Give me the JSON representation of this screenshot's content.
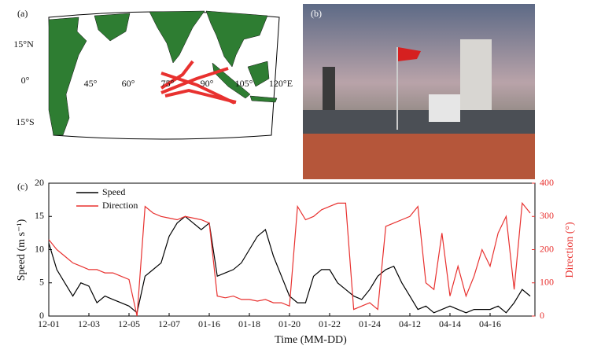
{
  "map": {
    "panel": "(a)",
    "lat_labels": [
      "15°N",
      "0°",
      "15°S"
    ],
    "lon_labels": [
      "45°",
      "60°",
      "75°",
      "90°",
      "105°",
      "120°E"
    ]
  },
  "photo": {
    "panel": "(b)"
  },
  "chart_data": {
    "type": "line",
    "panel": "(c)",
    "xlabel": "Time (MM-DD)",
    "ylabel": "Speed (m s⁻¹)",
    "y2label": "Direction (°)",
    "categories": [
      "12-01",
      null,
      null,
      null,
      null,
      "12-03",
      null,
      null,
      null,
      null,
      "12-05",
      null,
      null,
      null,
      null,
      "12-07",
      null,
      null,
      null,
      null,
      "01-16",
      null,
      null,
      null,
      null,
      "01-18",
      null,
      null,
      null,
      null,
      "01-20",
      null,
      null,
      null,
      null,
      "01-22",
      null,
      null,
      null,
      null,
      "01-24",
      null,
      null,
      null,
      null,
      "04-12",
      null,
      null,
      null,
      null,
      "04-14",
      null,
      null,
      null,
      null,
      "04-16",
      null,
      null,
      null,
      null,
      null
    ],
    "series": [
      {
        "name": "Speed",
        "color": "#000000",
        "values": [
          11,
          7,
          5,
          3,
          5,
          4.5,
          2,
          3,
          2.5,
          2,
          1.5,
          0.5,
          6,
          7,
          8,
          12,
          14,
          15,
          14,
          13,
          14,
          6,
          6.5,
          7,
          8,
          10,
          12,
          13,
          9,
          6,
          3,
          2,
          2,
          6,
          7,
          7,
          5,
          4,
          3,
          2.5,
          4,
          6,
          7,
          7.5,
          5,
          3,
          1,
          1.5,
          0.5,
          1,
          1.5,
          1,
          0.5,
          1,
          1,
          1,
          1.5,
          0.5,
          2,
          4,
          3
        ]
      },
      {
        "name": "Direction",
        "color": "#e8312f",
        "axis": "y2",
        "values": [
          230,
          200,
          180,
          160,
          150,
          140,
          140,
          130,
          130,
          120,
          110,
          0,
          330,
          310,
          300,
          295,
          290,
          300,
          295,
          290,
          280,
          60,
          55,
          60,
          50,
          50,
          45,
          50,
          40,
          40,
          30,
          330,
          290,
          300,
          320,
          330,
          340,
          340,
          20,
          30,
          40,
          20,
          270,
          280,
          290,
          300,
          330,
          100,
          80,
          250,
          60,
          150,
          60,
          120,
          200,
          150,
          250,
          300,
          80,
          340,
          310
        ]
      }
    ],
    "ylim": [
      0,
      20
    ],
    "yticks": [
      0,
      5,
      10,
      15,
      20
    ],
    "y2lim": [
      0,
      400
    ],
    "y2ticks": [
      0,
      100,
      200,
      300,
      400
    ],
    "legend": "upper left",
    "grid": false
  }
}
